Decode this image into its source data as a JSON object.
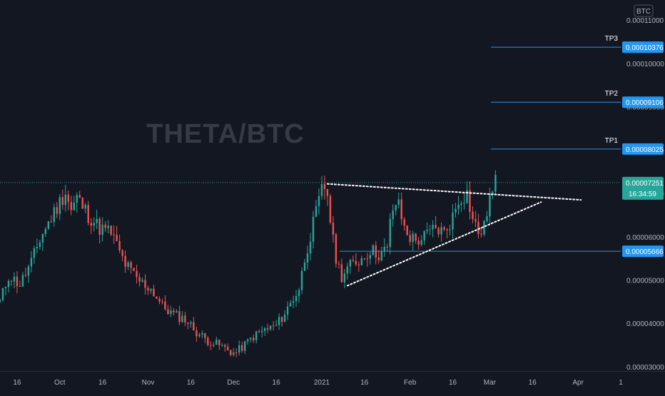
{
  "symbol_badge": "BTC",
  "watermark": "THETA/BTC",
  "colors": {
    "background": "#131722",
    "up_candle": "#26a69a",
    "down_candle": "#ef5350",
    "level_line": "#2196f3",
    "price_tag_bg": "#26a69a"
  },
  "price_axis": {
    "ticks": [
      "0.00011000",
      "0.00010000",
      "0.00009000",
      "0.00008000",
      "0.00007000",
      "0.00006000",
      "0.00005000",
      "0.00004000",
      "0.00003000"
    ],
    "current_price": "0.00007251",
    "countdown": "16:34:59"
  },
  "levels": [
    {
      "name": "TP3",
      "label": "TP3",
      "price_label": "0.00010376"
    },
    {
      "name": "TP2",
      "label": "TP2",
      "price_label": "0.00009106"
    },
    {
      "name": "TP1",
      "label": "TP1",
      "price_label": "0.00008025"
    },
    {
      "name": "support",
      "label": "",
      "price_label": "0.00005666"
    }
  ],
  "time_axis": {
    "labels": [
      "16",
      "Oct",
      "16",
      "Nov",
      "16",
      "Dec",
      "16",
      "2021",
      "16",
      "Feb",
      "16",
      "Mar",
      "16",
      "Apr",
      "1"
    ]
  },
  "chart_data": {
    "type": "candlestick",
    "pair": "THETA/BTC",
    "x_range": [
      "2020-09-10",
      "2021-04-16"
    ],
    "y_range": [
      2.9e-05,
      0.000113
    ],
    "series": [
      {
        "start": "2020-09-10",
        "days": 12,
        "path": [
          4.3e-05,
          5.1e-05,
          4.9e-05,
          5.4e-05
        ]
      },
      {
        "start": "2020-09-22",
        "days": 10,
        "path": [
          5.4e-05,
          6e-05,
          6.4e-05,
          6.8e-05
        ]
      },
      {
        "start": "2020-10-02",
        "days": 6,
        "path": [
          6.8e-05,
          7.05e-05,
          6.6e-05,
          6.9e-05
        ]
      },
      {
        "start": "2020-10-08",
        "days": 12,
        "path": [
          6.9e-05,
          6.5e-05,
          6.2e-05,
          6.1e-05
        ]
      },
      {
        "start": "2020-10-20",
        "days": 14,
        "path": [
          6.1e-05,
          5.4e-05,
          5e-05,
          4.8e-05
        ]
      },
      {
        "start": "2020-11-03",
        "days": 12,
        "path": [
          4.8e-05,
          4.4e-05,
          4.2e-05,
          4.1e-05
        ]
      },
      {
        "start": "2020-11-15",
        "days": 12,
        "path": [
          4.1e-05,
          3.8e-05,
          3.6e-05,
          3.5e-05
        ]
      },
      {
        "start": "2020-11-27",
        "days": 8,
        "path": [
          3.5e-05,
          3.4e-05,
          3.3e-05,
          3.45e-05
        ]
      },
      {
        "start": "2020-12-05",
        "days": 12,
        "path": [
          3.45e-05,
          3.7e-05,
          3.85e-05,
          3.95e-05
        ]
      },
      {
        "start": "2020-12-17",
        "days": 8,
        "path": [
          3.95e-05,
          4.2e-05,
          4.5e-05,
          4.8e-05
        ]
      },
      {
        "start": "2020-12-25",
        "days": 7,
        "path": [
          4.8e-05,
          5.6e-05,
          6.2e-05,
          6.8e-05
        ]
      },
      {
        "start": "2021-01-01",
        "days": 3,
        "path": [
          6.8e-05,
          7.2e-05,
          7e-05
        ]
      },
      {
        "start": "2021-01-04",
        "days": 5,
        "path": [
          7e-05,
          6e-05,
          5.4e-05,
          5.1e-05
        ]
      },
      {
        "start": "2021-01-09",
        "days": 7,
        "path": [
          5.1e-05,
          5.3e-05,
          5.4e-05,
          5.5e-05
        ]
      },
      {
        "start": "2021-01-16",
        "days": 9,
        "path": [
          5.5e-05,
          5.7e-05,
          5.6e-05,
          5.7e-05
        ]
      },
      {
        "start": "2021-01-25",
        "days": 4,
        "path": [
          5.7e-05,
          6.5e-05,
          6.8e-05,
          6.7e-05
        ]
      },
      {
        "start": "2021-01-29",
        "days": 6,
        "path": [
          6.7e-05,
          6.2e-05,
          6e-05,
          5.9e-05
        ]
      },
      {
        "start": "2021-02-04",
        "days": 10,
        "path": [
          5.9e-05,
          6e-05,
          6.2e-05,
          6.1e-05
        ]
      },
      {
        "start": "2021-02-14",
        "days": 8,
        "path": [
          6.1e-05,
          6.4e-05,
          6.9e-05,
          7e-05
        ]
      },
      {
        "start": "2021-02-22",
        "days": 6,
        "path": [
          7e-05,
          6.4e-05,
          6.1e-05,
          6.2e-05
        ]
      },
      {
        "start": "2021-02-28",
        "days": 3,
        "path": [
          6.2e-05,
          6.6e-05,
          6.9e-05,
          7e-05
        ]
      },
      {
        "start": "2021-03-03",
        "days": 1,
        "path": [
          7e-05,
          7.25e-05
        ]
      }
    ],
    "levels": [
      {
        "name": "TP3",
        "value": 0.00010376
      },
      {
        "name": "TP2",
        "value": 9.106e-05
      },
      {
        "name": "TP1",
        "value": 8.025e-05
      },
      {
        "name": "support",
        "value": 5.666e-05
      },
      {
        "name": "last price",
        "value": 7.251e-05
      }
    ],
    "trendlines": [
      {
        "name": "upper",
        "from": [
          "2021-01-03",
          7.22e-05
        ],
        "to": [
          "2021-04-02",
          6.85e-05
        ]
      },
      {
        "name": "lower",
        "from": [
          "2021-01-10",
          4.87e-05
        ],
        "to": [
          "2021-03-19",
          6.8e-05
        ]
      }
    ],
    "grid": false
  }
}
